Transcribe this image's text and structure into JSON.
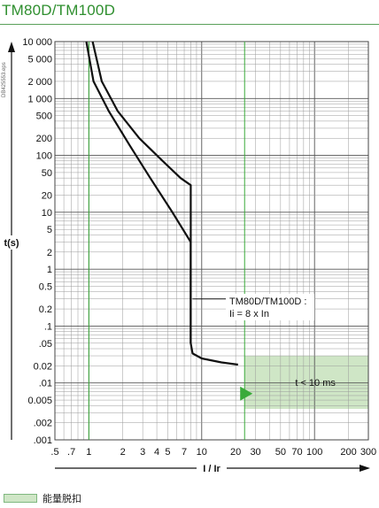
{
  "title": "TM80D/TM100D",
  "doc_ref": "DB425553.eps",
  "legend": {
    "label": "能量脱扣"
  },
  "colors": {
    "title": "#2f8f2f",
    "zone_fill": "#cfe6c6",
    "zone_edge": "#7fb87f",
    "marker": "#3aaa3a",
    "curve": "#111111"
  },
  "chart_data": {
    "type": "line",
    "xlabel": "I / Ir",
    "ylabel": "t(s)",
    "xscale": "log",
    "yscale": "log",
    "xlim": [
      0.5,
      300
    ],
    "ylim": [
      0.001,
      10000
    ],
    "grid": true,
    "x_ticks": [
      {
        "value": 0.5,
        "label": ".5"
      },
      {
        "value": 0.7,
        "label": ".7"
      },
      {
        "value": 1,
        "label": "1"
      },
      {
        "value": 2,
        "label": "2"
      },
      {
        "value": 3,
        "label": "3"
      },
      {
        "value": 4,
        "label": "4"
      },
      {
        "value": 5,
        "label": "5"
      },
      {
        "value": 7,
        "label": "7"
      },
      {
        "value": 10,
        "label": "10"
      },
      {
        "value": 20,
        "label": "20"
      },
      {
        "value": 30,
        "label": "30"
      },
      {
        "value": 50,
        "label": "50"
      },
      {
        "value": 70,
        "label": "70"
      },
      {
        "value": 100,
        "label": "100"
      },
      {
        "value": 200,
        "label": "200"
      },
      {
        "value": 300,
        "label": "300"
      }
    ],
    "y_ticks": [
      {
        "value": 10000,
        "label": "10 000"
      },
      {
        "value": 5000,
        "label": "5 000"
      },
      {
        "value": 2000,
        "label": "2 000"
      },
      {
        "value": 1000,
        "label": "1 000"
      },
      {
        "value": 500,
        "label": "500"
      },
      {
        "value": 200,
        "label": "200"
      },
      {
        "value": 100,
        "label": "100"
      },
      {
        "value": 50,
        "label": "50"
      },
      {
        "value": 20,
        "label": "20"
      },
      {
        "value": 10,
        "label": "10"
      },
      {
        "value": 5,
        "label": "5"
      },
      {
        "value": 2,
        "label": "2"
      },
      {
        "value": 1,
        "label": "1"
      },
      {
        "value": 0.5,
        "label": "0.5"
      },
      {
        "value": 0.2,
        "label": "0.2"
      },
      {
        "value": 0.1,
        "label": ".1"
      },
      {
        "value": 0.05,
        "label": ".05"
      },
      {
        "value": 0.02,
        "label": "0.02"
      },
      {
        "value": 0.01,
        "label": ".01"
      },
      {
        "value": 0.005,
        "label": "0.005"
      },
      {
        "value": 0.002,
        "label": ".002"
      },
      {
        "value": 0.001,
        "label": ".001"
      }
    ],
    "series": [
      {
        "values": [
          [
            1.08,
            10000
          ],
          [
            1.3,
            2000
          ],
          [
            1.8,
            600
          ],
          [
            2.8,
            200
          ],
          [
            4.5,
            80
          ],
          [
            6.5,
            40
          ],
          [
            8.0,
            30
          ],
          [
            8.0,
            0.05
          ],
          [
            8.3,
            0.033
          ],
          [
            10,
            0.027
          ],
          [
            15,
            0.023
          ],
          [
            21,
            0.021
          ]
        ]
      },
      {
        "values": [
          [
            0.95,
            10000
          ],
          [
            1.1,
            2000
          ],
          [
            1.5,
            600
          ],
          [
            2.3,
            150
          ],
          [
            3.5,
            40
          ],
          [
            5.5,
            10
          ],
          [
            8.0,
            3.0
          ],
          [
            8.0,
            0.05
          ]
        ]
      }
    ],
    "reference_lines": [
      {
        "axis": "x",
        "value": 1
      },
      {
        "axis": "x",
        "value": 24
      }
    ],
    "zone": {
      "xmin": 24,
      "xmax": 300,
      "ymin": 0.0035,
      "ymax": 0.03,
      "label": "t < 10 ms"
    },
    "marker": {
      "x": 24,
      "y": 0.0065
    },
    "annotation": {
      "lines": [
        "TM80D/TM100D :",
        "Ii = 8 x In"
      ],
      "point": [
        8.0,
        0.3
      ]
    }
  }
}
